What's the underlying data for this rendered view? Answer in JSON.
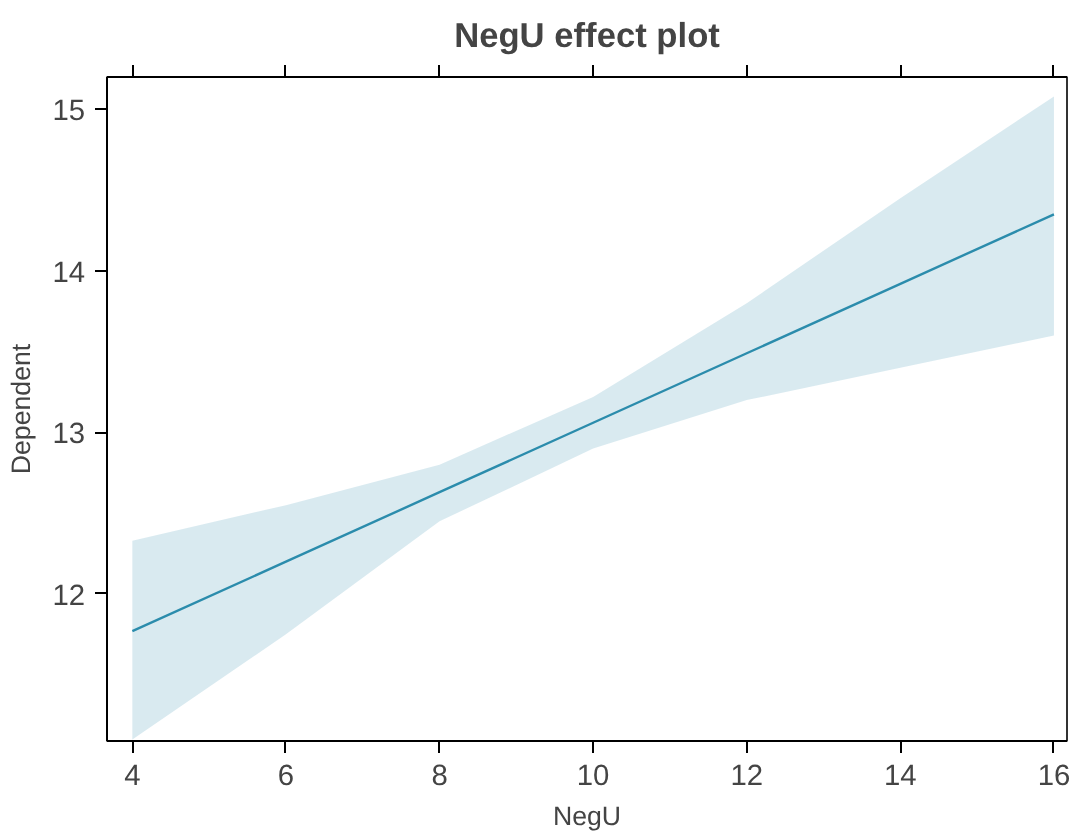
{
  "chart_data": {
    "type": "line",
    "title": "NegU effect plot",
    "xlabel": "NegU",
    "ylabel": "Dependent",
    "x": [
      4,
      6,
      8,
      10,
      12,
      14,
      16
    ],
    "series": [
      {
        "color": "#2b8cac",
        "values": [
          11.77,
          12.2,
          12.63,
          13.06,
          13.49,
          13.92,
          14.35
        ],
        "lower": [
          11.1,
          11.75,
          12.45,
          12.9,
          13.2,
          13.4,
          13.6
        ],
        "upper": [
          12.33,
          12.55,
          12.8,
          13.22,
          13.8,
          14.45,
          15.08
        ]
      }
    ],
    "xlim": [
      3.67,
      16.17
    ],
    "ylim": [
      11.09,
      15.2
    ],
    "xticks": [
      4,
      6,
      8,
      10,
      12,
      14,
      16
    ],
    "yticks": [
      12,
      13,
      14,
      15
    ],
    "grid": false
  }
}
